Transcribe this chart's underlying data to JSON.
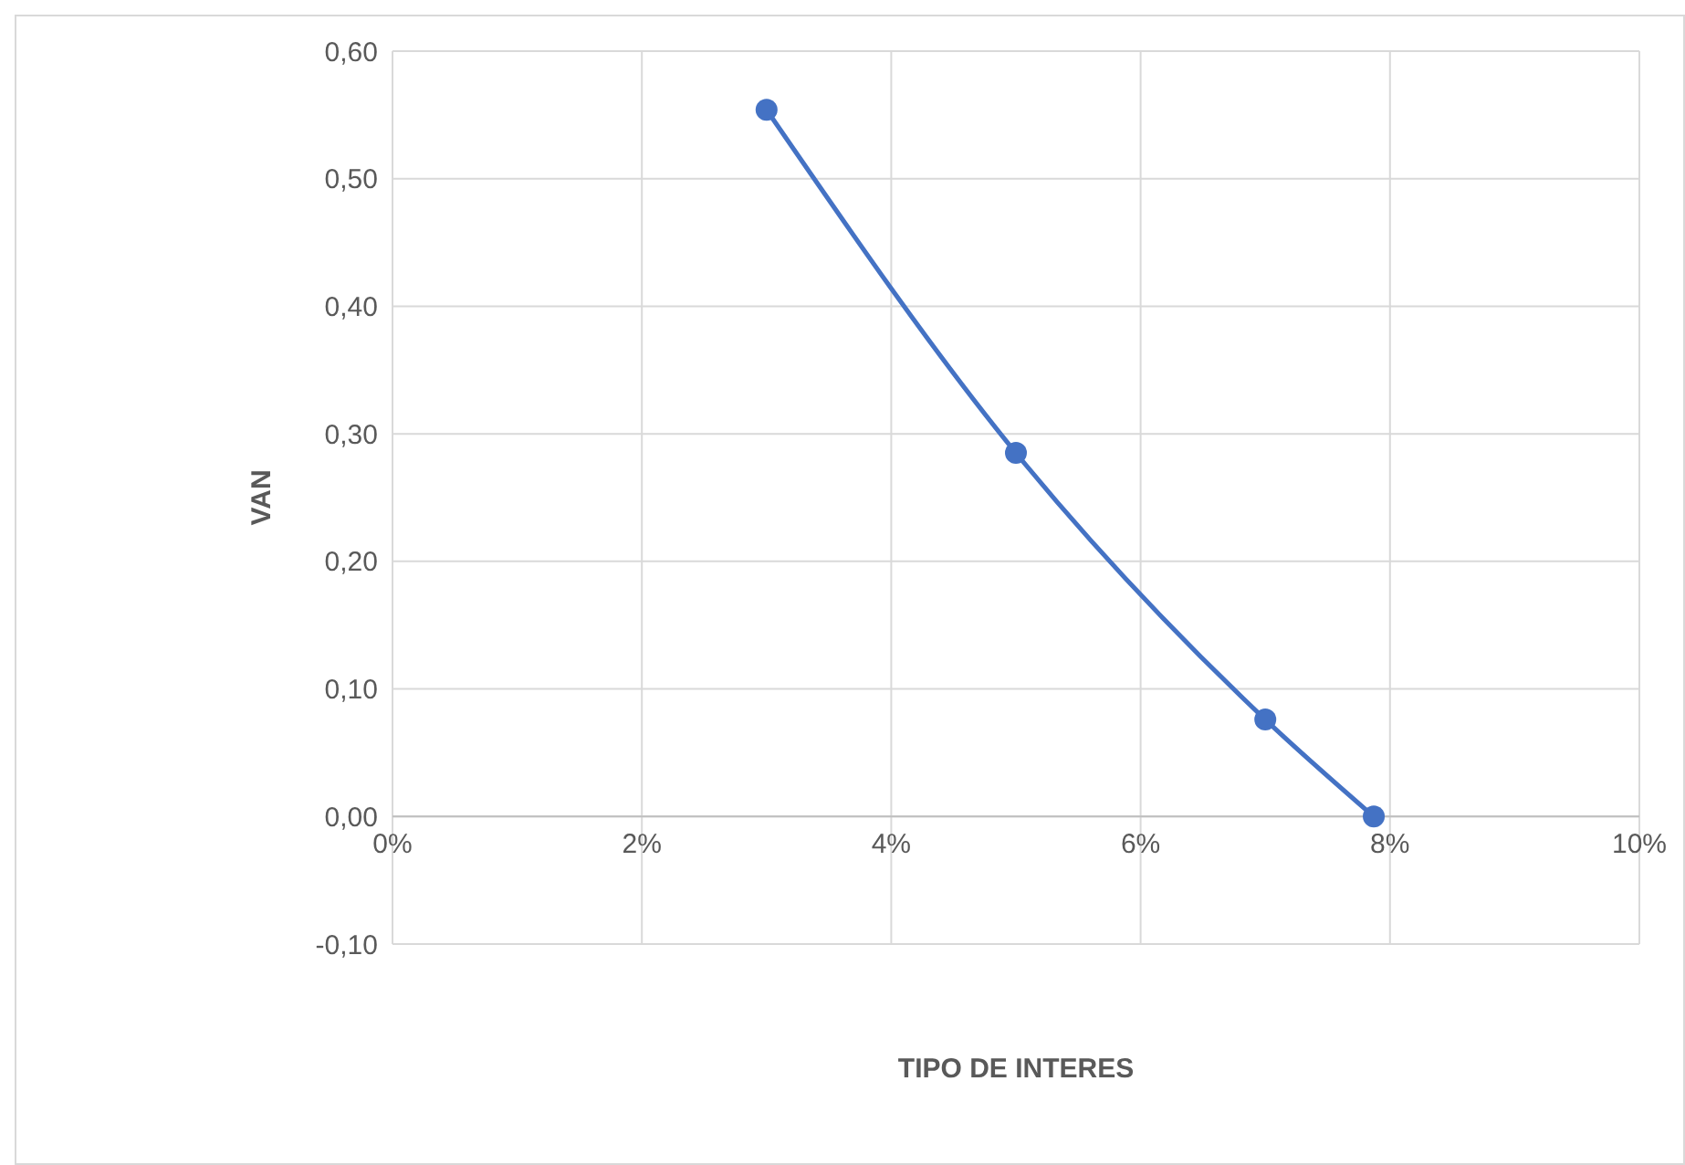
{
  "chart_data": {
    "type": "line",
    "xlabel": "TIPO DE INTERES",
    "ylabel": "VAN",
    "x": [
      3,
      5,
      7,
      7.87
    ],
    "series": [
      {
        "color": "#4472c4",
        "values": [
          0.554,
          0.285,
          0.076,
          0
        ]
      }
    ],
    "xlim": [
      0,
      10
    ],
    "xticks": [
      {
        "value": 0,
        "label": "0%"
      },
      {
        "value": 2,
        "label": "2%"
      },
      {
        "value": 4,
        "label": "4%"
      },
      {
        "value": 6,
        "label": "6%"
      },
      {
        "value": 8,
        "label": "8%"
      },
      {
        "value": 10,
        "label": "10%"
      }
    ],
    "ylim": [
      -0.1,
      0.6
    ],
    "yticks": [
      {
        "value": -0.1,
        "label": "-0,10"
      },
      {
        "value": 0,
        "label": "0,00"
      },
      {
        "value": 0.1,
        "label": "0,10"
      },
      {
        "value": 0.2,
        "label": "0,20"
      },
      {
        "value": 0.3,
        "label": "0,30"
      },
      {
        "value": 0.4,
        "label": "0,40"
      },
      {
        "value": 0.5,
        "label": "0,50"
      },
      {
        "value": 0.6,
        "label": "0,60"
      }
    ],
    "grid": true,
    "marker": "circle",
    "line_style": "solid"
  }
}
